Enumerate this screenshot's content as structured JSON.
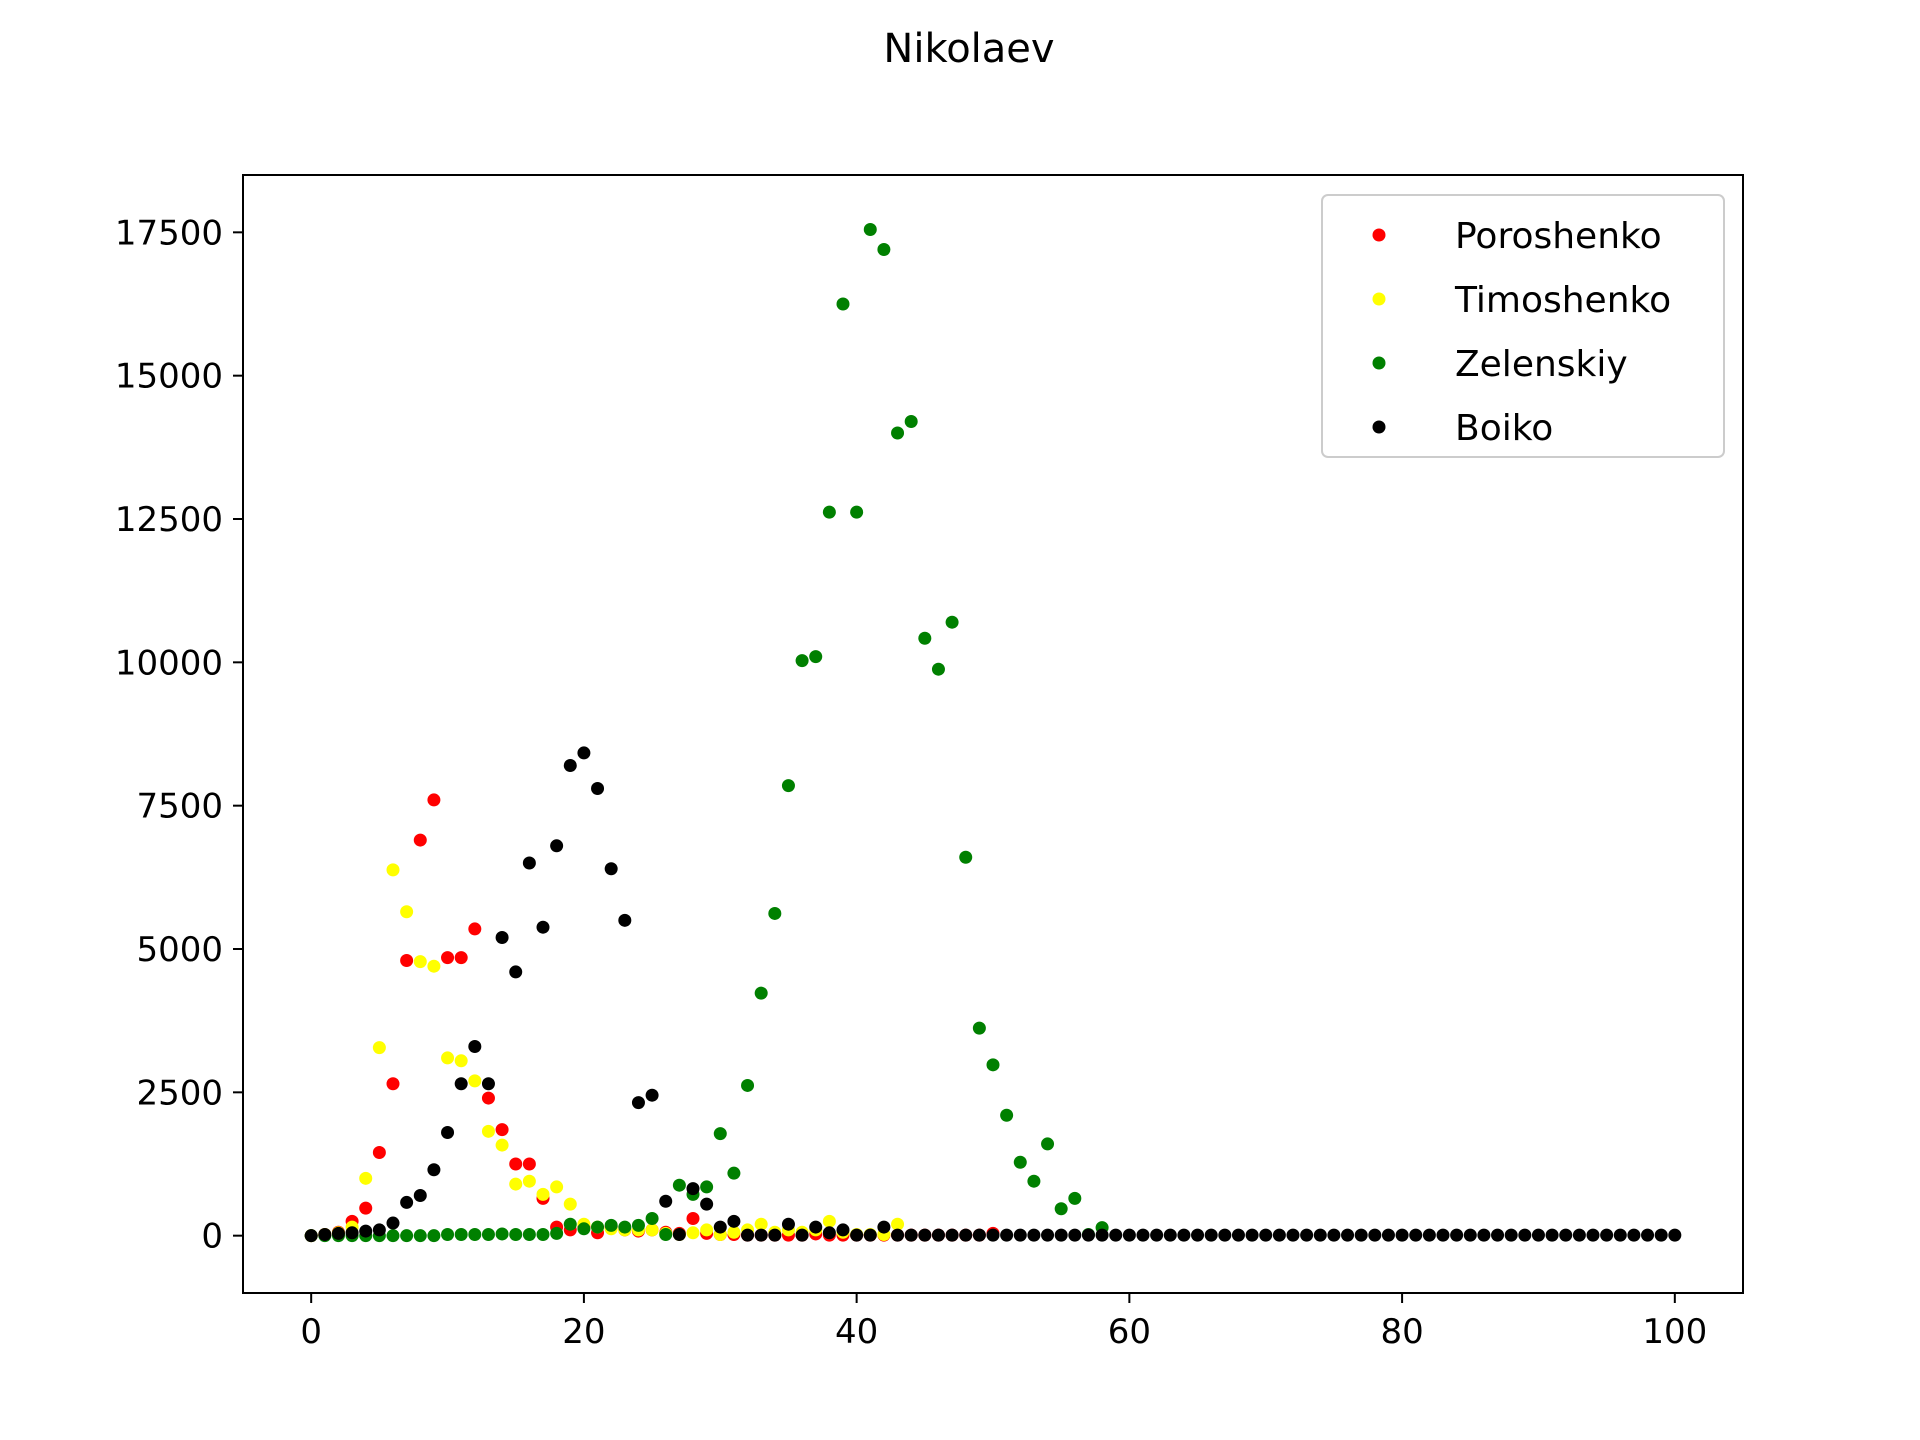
{
  "chart_data": {
    "type": "scatter",
    "title": "Nikolaev",
    "xlabel": "",
    "ylabel": "",
    "xlim": [
      -5,
      105
    ],
    "ylim": [
      -1000,
      18500
    ],
    "xticks": [
      0,
      20,
      40,
      60,
      80,
      100
    ],
    "yticks": [
      0,
      2500,
      5000,
      7500,
      10000,
      12500,
      15000,
      17500
    ],
    "grid": false,
    "legend_position": "top-right",
    "series": [
      {
        "name": "Poroshenko",
        "color": "#ff0000",
        "x": [
          0,
          1,
          2,
          3,
          4,
          5,
          6,
          7,
          8,
          9,
          10,
          11,
          12,
          13,
          14,
          15,
          16,
          17,
          18,
          19,
          20,
          21,
          22,
          23,
          24,
          25,
          26,
          27,
          28,
          29,
          30,
          31,
          32,
          33,
          34,
          35,
          36,
          37,
          38,
          39,
          40,
          41,
          42,
          43,
          44,
          45,
          46,
          47,
          48,
          49,
          50
        ],
        "y": [
          0,
          20,
          60,
          250,
          480,
          1450,
          2650,
          4800,
          6900,
          7600,
          4850,
          4850,
          5350,
          2400,
          1850,
          1250,
          1250,
          650,
          150,
          100,
          150,
          50,
          150,
          100,
          80,
          100,
          60,
          40,
          300,
          40,
          20,
          20,
          10,
          10,
          10,
          10,
          10,
          30,
          10,
          10,
          10,
          10,
          10,
          10,
          10,
          10,
          10,
          10,
          10,
          10,
          40
        ]
      },
      {
        "name": "Timoshenko",
        "color": "#ffff00",
        "x": [
          0,
          1,
          2,
          3,
          4,
          5,
          6,
          7,
          8,
          9,
          10,
          11,
          12,
          13,
          14,
          15,
          16,
          17,
          18,
          19,
          20,
          21,
          22,
          23,
          24,
          25,
          26,
          27,
          28,
          29,
          30,
          31,
          32,
          33,
          34,
          35,
          36,
          37,
          38,
          39,
          40,
          41,
          42,
          43
        ],
        "y": [
          0,
          20,
          50,
          150,
          1000,
          3280,
          6380,
          5650,
          4780,
          4700,
          3100,
          3050,
          2700,
          1820,
          1580,
          900,
          950,
          720,
          850,
          550,
          200,
          150,
          120,
          100,
          100,
          100,
          40,
          20,
          50,
          100,
          20,
          60,
          100,
          200,
          60,
          100,
          60,
          100,
          250,
          60,
          20,
          20,
          20,
          200
        ]
      },
      {
        "name": "Zelenskiy",
        "color": "#008000",
        "x": [
          0,
          1,
          2,
          3,
          4,
          5,
          6,
          7,
          8,
          9,
          10,
          11,
          12,
          13,
          14,
          15,
          16,
          17,
          18,
          19,
          20,
          21,
          22,
          23,
          24,
          25,
          26,
          27,
          28,
          29,
          30,
          31,
          32,
          33,
          34,
          35,
          36,
          37,
          38,
          39,
          40,
          41,
          42,
          43,
          44,
          45,
          46,
          47,
          48,
          49,
          50,
          51,
          52,
          53,
          54,
          55,
          56,
          57,
          58
        ],
        "y": [
          0,
          0,
          0,
          0,
          0,
          0,
          0,
          0,
          0,
          0,
          20,
          20,
          20,
          20,
          30,
          20,
          20,
          20,
          40,
          200,
          120,
          150,
          180,
          150,
          180,
          300,
          20,
          880,
          720,
          850,
          1780,
          1090,
          2620,
          4230,
          5620,
          7850,
          10030,
          10100,
          12620,
          16250,
          12620,
          17550,
          17200,
          14000,
          14200,
          10420,
          9880,
          10700,
          6600,
          3620,
          2980,
          2100,
          1280,
          950,
          1600,
          470,
          650,
          20,
          140
        ]
      },
      {
        "name": "Boiko",
        "color": "#000000",
        "x": [
          0,
          1,
          2,
          3,
          4,
          5,
          6,
          7,
          8,
          9,
          10,
          11,
          12,
          13,
          14,
          15,
          16,
          17,
          18,
          19,
          20,
          21,
          22,
          23,
          24,
          25,
          26,
          27,
          28,
          29,
          30,
          31,
          32,
          33,
          34,
          35,
          36,
          37,
          38,
          39,
          40,
          41,
          42,
          43,
          44,
          45,
          46,
          47,
          48,
          49,
          50,
          51,
          52,
          53,
          54,
          55,
          56,
          57,
          58,
          59,
          60,
          61,
          62,
          63,
          64,
          65,
          66,
          67,
          68,
          69,
          70,
          71,
          72,
          73,
          74,
          75,
          76,
          77,
          78,
          79,
          80,
          81,
          82,
          83,
          84,
          85,
          86,
          87,
          88,
          89,
          90,
          91,
          92,
          93,
          94,
          95,
          96,
          97,
          98,
          99,
          100
        ],
        "y": [
          0,
          20,
          40,
          50,
          80,
          100,
          220,
          580,
          700,
          1150,
          1800,
          2650,
          3300,
          2650,
          5200,
          4600,
          6500,
          5380,
          6800,
          8200,
          8420,
          7800,
          6400,
          5500,
          2320,
          2450,
          600,
          20,
          820,
          550,
          150,
          250,
          10,
          10,
          10,
          200,
          10,
          150,
          50,
          100,
          10,
          10,
          150,
          10,
          10,
          10,
          10,
          10,
          10,
          10,
          10,
          10,
          10,
          10,
          10,
          10,
          10,
          10,
          10,
          10,
          10,
          10,
          10,
          10,
          10,
          10,
          10,
          10,
          10,
          10,
          10,
          10,
          10,
          10,
          10,
          10,
          10,
          10,
          10,
          10,
          10,
          10,
          10,
          10,
          10,
          10,
          10,
          10,
          10,
          10,
          10,
          10,
          10,
          10,
          10,
          10,
          10,
          10,
          10,
          10,
          10
        ]
      }
    ]
  }
}
